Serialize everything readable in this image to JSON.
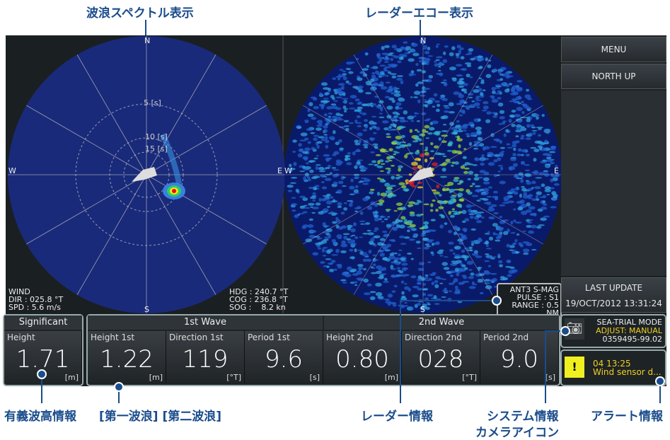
{
  "callouts": {
    "wave_spectrum": "波浪スペクトル表示",
    "radar_echo": "レーダーエコー表示",
    "significant": "有義波高情報",
    "waves": "[第一波浪] [第二波浪]",
    "radar_info": "レーダー情報",
    "system_info": "システム情報",
    "camera_icon": "カメラアイコン",
    "alert_info": "アラート情報"
  },
  "spectrum": {
    "n": "N",
    "s": "S",
    "e": "E",
    "w": "W",
    "rings": [
      "5 [s]",
      "10 [s]",
      "15 [s]"
    ],
    "wind_title": "WIND",
    "wind_dir": "DIR : 025.8 °T",
    "wind_spd": "SPD : 5.6 m/s",
    "hdg": "HDG : 240.7 °T",
    "cog": "COG : 236.8 °T",
    "sog": "SOG :    8.2 kn"
  },
  "radar": {
    "n": "N",
    "s": "S",
    "e": "E",
    "w": "W",
    "ant": "ANT3 S-MAG",
    "pulse": "PULSE : S1",
    "range": "RANGE : 0.5 NM"
  },
  "menu": {
    "menu": "MENU",
    "north_up": "NORTH UP",
    "last_update_label": "LAST UPDATE",
    "last_update": "19/OCT/2012 13:31:24"
  },
  "significant": {
    "header": "Significant",
    "label": "Height",
    "value": "1.71",
    "unit": "[m]"
  },
  "wave1": {
    "header": "1st Wave",
    "cells": [
      {
        "label": "Height 1st",
        "value": "1.22",
        "unit": "[m]"
      },
      {
        "label": "Direction 1st",
        "value": "119",
        "unit": "[°T]"
      },
      {
        "label": "Period 1st",
        "value": "9.6",
        "unit": "[s]"
      }
    ]
  },
  "wave2": {
    "header": "2nd Wave",
    "cells": [
      {
        "label": "Height 2nd",
        "value": "0.80",
        "unit": "[m]"
      },
      {
        "label": "Direction 2nd",
        "value": "028",
        "unit": "[°T]"
      },
      {
        "label": "Period 2nd",
        "value": "9.0",
        "unit": "[s]"
      }
    ]
  },
  "system": {
    "mode": "SEA-TRIAL MODE",
    "adjust": "ADJUST: MANUAL",
    "id": "0359495-99.02"
  },
  "alert": {
    "time": "04 13:25",
    "message": "Wind sensor d..."
  }
}
